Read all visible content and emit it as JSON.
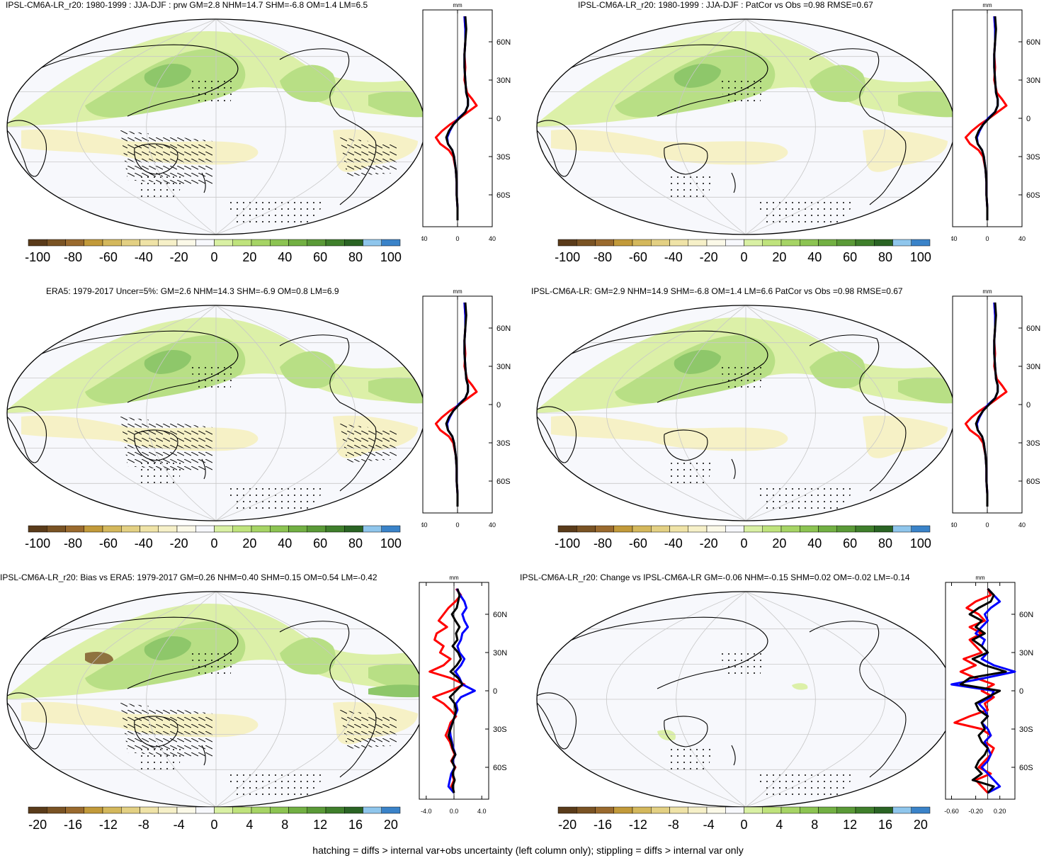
{
  "figure": {
    "footer": "hatching = diffs > internal var+obs uncertainty (left column only); stippling = diffs > internal var only"
  },
  "palette": [
    "#5a3b1a",
    "#7a5324",
    "#9a6a2e",
    "#c29a3a",
    "#d4b85c",
    "#e3d083",
    "#efe3a7",
    "#f6f0c8",
    "#fbf9e8",
    "#f7f8fc",
    "#d9f0a4",
    "#bfe37c",
    "#a6d465",
    "#8cc452",
    "#72b043",
    "#5a9a37",
    "#3f7f2b",
    "#2a6424",
    "#8fc6ec",
    "#3a83c9"
  ],
  "map_colors": {
    "ocean": "#f7f8fc",
    "light_green": "#dcf0a8",
    "mid_green": "#b8df85",
    "dark_green": "#8ec76a",
    "pale_yellow": "#f6f1c6",
    "brown": "#7a5324"
  },
  "profile_colors": {
    "obs": "#000000",
    "model": "#ff0000",
    "change": "#0000ff"
  },
  "panels": [
    {
      "id": "a",
      "title": "IPSL-CM6A-LR_r20: 1980-1999 : JJA-DJF : prw GM=2.8 NHM=14.7 SHM=-6.8 OM=1.4 LM=6.5",
      "colorbar_labels": [
        "-100",
        "-80",
        "-60",
        "-40",
        "-20",
        "0",
        "20",
        "40",
        "60",
        "80",
        "100"
      ],
      "profile_unit": "mm",
      "profile_xticks": [
        "-40",
        "0",
        "40"
      ],
      "profile_xrange": [
        -40,
        40
      ],
      "lat_ticks": [
        "60N",
        "30N",
        "0",
        "30S",
        "60S"
      ],
      "profile": {
        "lat": [
          80,
          70,
          60,
          50,
          40,
          30,
          20,
          15,
          10,
          5,
          0,
          -5,
          -10,
          -15,
          -20,
          -25,
          -30,
          -40,
          -50,
          -60,
          -70,
          -80
        ],
        "obs": [
          9,
          10,
          9,
          8,
          8,
          9,
          10,
          12,
          12,
          9,
          2,
          -5,
          -10,
          -13,
          -11,
          -6,
          -4,
          -2,
          -1,
          -1,
          0,
          0
        ],
        "model": [
          8,
          9,
          9,
          8,
          9,
          8,
          11,
          17,
          22,
          12,
          2,
          -9,
          -18,
          -25,
          -20,
          -10,
          -5,
          -2,
          -1,
          -1,
          0,
          0
        ],
        "ipsl": [
          8,
          9,
          9,
          8,
          8,
          9,
          10,
          12,
          12,
          9,
          1,
          -5,
          -9,
          -12,
          -11,
          -6,
          -4,
          -2,
          -1,
          -1,
          0,
          0
        ]
      }
    },
    {
      "id": "b",
      "title": "IPSL-CM6A-LR_r20: 1980-1999 : JJA-DJF : PatCor vs Obs =0.98 RMSE=0.67",
      "colorbar_labels": [
        "-100",
        "-80",
        "-60",
        "-40",
        "-20",
        "0",
        "20",
        "40",
        "60",
        "80",
        "100"
      ],
      "profile_unit": "mm",
      "profile_xticks": [
        "-40",
        "0",
        "40"
      ],
      "profile_xrange": [
        -40,
        40
      ],
      "lat_ticks": [
        "60N",
        "30N",
        "0",
        "30S",
        "60S"
      ],
      "profile": {
        "lat": [
          80,
          70,
          60,
          50,
          40,
          30,
          20,
          15,
          10,
          5,
          0,
          -5,
          -10,
          -15,
          -20,
          -25,
          -30,
          -40,
          -50,
          -60,
          -70,
          -80
        ],
        "obs": [
          9,
          10,
          9,
          8,
          8,
          9,
          10,
          12,
          12,
          9,
          2,
          -5,
          -10,
          -13,
          -11,
          -6,
          -4,
          -2,
          -1,
          -1,
          0,
          0
        ],
        "model": [
          8,
          9,
          9,
          8,
          9,
          8,
          11,
          17,
          22,
          12,
          2,
          -9,
          -18,
          -25,
          -20,
          -10,
          -5,
          -2,
          -1,
          -1,
          0,
          0
        ],
        "ipsl": [
          8,
          9,
          9,
          8,
          8,
          9,
          10,
          12,
          12,
          9,
          1,
          -5,
          -9,
          -12,
          -11,
          -6,
          -4,
          -2,
          -1,
          -1,
          0,
          0
        ]
      }
    },
    {
      "id": "c",
      "title": "ERA5: 1979-2017 Uncer=5%: GM=2.6 NHM=14.3 SHM=-6.9 OM=0.8 LM=6.9",
      "colorbar_labels": [
        "-100",
        "-80",
        "-60",
        "-40",
        "-20",
        "0",
        "20",
        "40",
        "60",
        "80",
        "100"
      ],
      "profile_unit": "mm",
      "profile_xticks": [
        "-40",
        "0",
        "40"
      ],
      "profile_xrange": [
        -40,
        40
      ],
      "lat_ticks": [
        "60N",
        "30N",
        "0",
        "30S",
        "60S"
      ],
      "profile": {
        "lat": [
          80,
          70,
          60,
          50,
          40,
          30,
          20,
          15,
          10,
          5,
          0,
          -5,
          -10,
          -15,
          -20,
          -25,
          -30,
          -40,
          -50,
          -60,
          -70,
          -80
        ],
        "obs": [
          9,
          10,
          9,
          8,
          8,
          9,
          10,
          12,
          12,
          9,
          2,
          -5,
          -10,
          -13,
          -11,
          -6,
          -4,
          -2,
          -1,
          -1,
          0,
          0
        ],
        "model": [
          8,
          9,
          9,
          8,
          9,
          8,
          11,
          17,
          22,
          12,
          2,
          -9,
          -18,
          -25,
          -20,
          -10,
          -5,
          -2,
          -1,
          -1,
          0,
          0
        ],
        "ipsl": [
          8,
          9,
          9,
          8,
          8,
          9,
          10,
          12,
          12,
          9,
          1,
          -5,
          -9,
          -12,
          -11,
          -6,
          -4,
          -2,
          -1,
          -1,
          0,
          0
        ]
      }
    },
    {
      "id": "d",
      "title": "IPSL-CM6A-LR: GM=2.9 NHM=14.9 SHM=-6.8 OM=1.4 LM=6.6 PatCor vs Obs =0.98 RMSE=0.67",
      "colorbar_labels": [
        "-100",
        "-80",
        "-60",
        "-40",
        "-20",
        "0",
        "20",
        "40",
        "60",
        "80",
        "100"
      ],
      "profile_unit": "mm",
      "profile_xticks": [
        "-40",
        "0",
        "40"
      ],
      "profile_xrange": [
        -40,
        40
      ],
      "lat_ticks": [
        "60N",
        "30N",
        "0",
        "30S",
        "60S"
      ],
      "profile": {
        "lat": [
          80,
          70,
          60,
          50,
          40,
          30,
          20,
          15,
          10,
          5,
          0,
          -5,
          -10,
          -15,
          -20,
          -25,
          -30,
          -40,
          -50,
          -60,
          -70,
          -80
        ],
        "obs": [
          9,
          10,
          9,
          8,
          8,
          9,
          10,
          12,
          12,
          9,
          2,
          -5,
          -10,
          -13,
          -11,
          -6,
          -4,
          -2,
          -1,
          -1,
          0,
          0
        ],
        "model": [
          8,
          9,
          9,
          8,
          9,
          8,
          11,
          17,
          22,
          12,
          2,
          -9,
          -18,
          -25,
          -20,
          -10,
          -5,
          -2,
          -1,
          -1,
          0,
          0
        ],
        "ipsl": [
          8,
          9,
          9,
          8,
          8,
          9,
          10,
          12,
          12,
          9,
          1,
          -5,
          -9,
          -12,
          -11,
          -6,
          -4,
          -2,
          -1,
          -1,
          0,
          0
        ]
      }
    },
    {
      "id": "e",
      "title": "IPSL-CM6A-LR_r20: Bias vs ERA5: 1979-2017 GM=0.26 NHM=0.40 SHM=0.15 OM=0.54 LM=-0.42",
      "colorbar_labels": [
        "-20",
        "-16",
        "-12",
        "-8",
        "-4",
        "0",
        "4",
        "8",
        "12",
        "16",
        "20"
      ],
      "profile_unit": "mm",
      "profile_xticks": [
        "-4.0",
        "0.0",
        "4.0"
      ],
      "profile_xrange": [
        -5,
        5
      ],
      "lat_ticks": [
        "60N",
        "30N",
        "0",
        "30S",
        "60S"
      ],
      "profile": {
        "lat": [
          80,
          75,
          70,
          65,
          60,
          55,
          50,
          45,
          40,
          35,
          30,
          25,
          20,
          15,
          10,
          5,
          0,
          -5,
          -10,
          -15,
          -20,
          -25,
          -30,
          -35,
          -40,
          -45,
          -50,
          -55,
          -60,
          -65,
          -70,
          -75,
          -80
        ],
        "obs": [
          0.5,
          0.8,
          0.6,
          0.4,
          -0.3,
          0.2,
          0.8,
          0.3,
          0.5,
          -0.2,
          0.6,
          1.0,
          0.4,
          -0.5,
          0.6,
          1.2,
          0.3,
          -0.6,
          0.1,
          0.3,
          0.1,
          -0.2,
          -0.5,
          -0.8,
          -0.4,
          -0.2,
          0.2,
          -0.3,
          0.1,
          -0.2,
          0.1,
          -0.2,
          0.0
        ],
        "model": [
          0.3,
          1.0,
          0.2,
          -0.8,
          -1.5,
          -2.2,
          -1.0,
          -2.5,
          -2.8,
          -1.5,
          -2.0,
          -0.5,
          -1.5,
          -3.5,
          -0.5,
          1.5,
          -0.5,
          -3.0,
          -1.5,
          -0.5,
          0.3,
          -0.5,
          -0.8,
          -1.2,
          -0.6,
          -0.3,
          0.1,
          -0.4,
          0.2,
          -0.3,
          0.0,
          -0.4,
          0.0
        ],
        "ipsl": [
          0.4,
          0.9,
          1.5,
          1.8,
          1.2,
          1.5,
          2.0,
          1.2,
          1.0,
          0.5,
          0.8,
          1.5,
          1.0,
          0.2,
          0.8,
          1.2,
          3.0,
          1.0,
          0.3,
          0.5,
          0.1,
          -0.2,
          -0.6,
          -0.5,
          -0.3,
          -0.1,
          0.2,
          -0.2,
          0.1,
          -0.4,
          -0.6,
          -0.8,
          0.0
        ]
      }
    },
    {
      "id": "f",
      "title": "IPSL-CM6A-LR_r20: Change vs IPSL-CM6A-LR GM=-0.06 NHM=-0.15 SHM=0.02 OM=-0.02 LM=-0.14",
      "colorbar_labels": [
        "-20",
        "-16",
        "-12",
        "-8",
        "-4",
        "0",
        "4",
        "8",
        "12",
        "16",
        "20"
      ],
      "profile_unit": "mm",
      "profile_xticks": [
        "-0.60",
        "-0.20",
        "0.20"
      ],
      "profile_xrange": [
        -0.7,
        0.45
      ],
      "lat_ticks": [
        "60N",
        "30N",
        "0",
        "30S",
        "60S"
      ],
      "profile": {
        "lat": [
          80,
          75,
          70,
          65,
          60,
          55,
          50,
          45,
          40,
          35,
          30,
          25,
          20,
          15,
          10,
          5,
          0,
          -5,
          -10,
          -15,
          -20,
          -25,
          -30,
          -35,
          -40,
          -45,
          -50,
          -55,
          -60,
          -65,
          -70,
          -75,
          -80
        ],
        "obs": [
          0.0,
          0.1,
          0.05,
          -0.15,
          -0.3,
          -0.1,
          -0.2,
          -0.05,
          -0.25,
          -0.1,
          0.0,
          -0.25,
          -0.05,
          0.3,
          -0.3,
          -0.45,
          0.2,
          0.0,
          -0.2,
          -0.15,
          0.0,
          -0.1,
          -0.05,
          -0.15,
          -0.1,
          0.0,
          -0.05,
          -0.15,
          -0.2,
          -0.1,
          -0.25,
          0.1,
          0.0
        ],
        "model": [
          0.0,
          0.05,
          -0.2,
          -0.35,
          -0.15,
          -0.05,
          -0.3,
          -0.1,
          -0.3,
          -0.2,
          -0.1,
          -0.4,
          -0.2,
          -0.45,
          -0.2,
          0.1,
          -0.1,
          0.1,
          -0.05,
          0.0,
          -0.3,
          -0.55,
          -0.1,
          0.05,
          -0.05,
          0.1,
          0.05,
          -0.05,
          -0.15,
          0.05,
          -0.2,
          -0.1,
          0.0
        ],
        "ipsl": [
          0.0,
          0.1,
          0.2,
          0.05,
          -0.05,
          0.0,
          -0.1,
          -0.2,
          -0.05,
          -0.1,
          0.0,
          -0.1,
          0.1,
          0.45,
          -0.05,
          -0.6,
          0.1,
          0.05,
          -0.15,
          -0.05,
          0.0,
          -0.1,
          0.0,
          0.05,
          -0.05,
          0.0,
          0.05,
          0.0,
          -0.1,
          0.0,
          0.1,
          0.2,
          0.0
        ]
      }
    }
  ]
}
